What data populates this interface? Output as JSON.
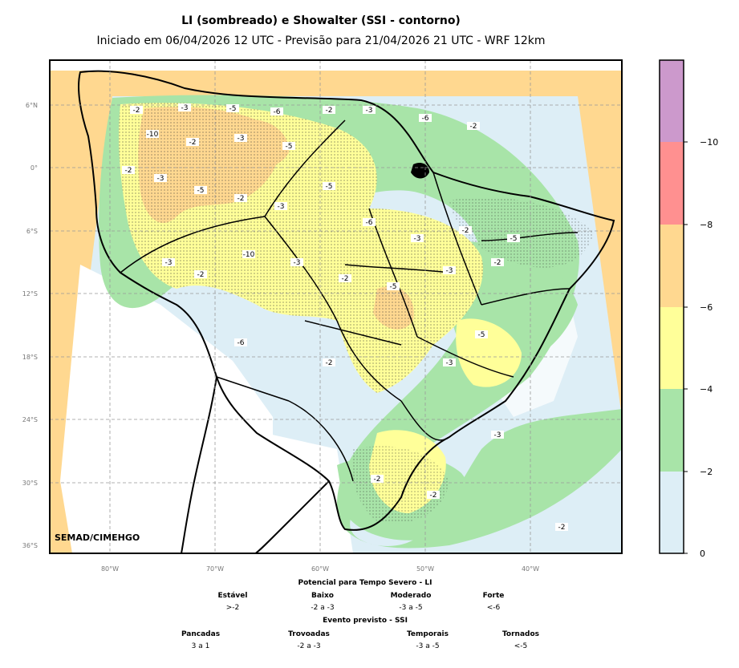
{
  "title": "LI (sombreado) e Showalter (SSI - contorno)",
  "subtitle": "Iniciado em 06/04/2026 12 UTC - Previsão para 21/04/2026 21 UTC - WRF 12km",
  "credit": "SEMAD/CIMEHGO",
  "lat_labels": [
    "6°N",
    "0°",
    "6°S",
    "12°S",
    "18°S",
    "24°S",
    "30°S",
    "36°S"
  ],
  "lon_labels": [
    "80°W",
    "70°W",
    "60°W",
    "50°W",
    "40°W"
  ],
  "colorbar": {
    "ticks": [
      "0",
      "−2",
      "−4",
      "−6",
      "−8",
      "−10"
    ],
    "colors": [
      "#ddeef6",
      "#a8e4a8",
      "#ffff99",
      "#ffd890",
      "#ff9090",
      "#cc99cc"
    ]
  },
  "legend_li": {
    "title": "Potencial para Tempo Severo - LI",
    "items": [
      {
        "label": "Estável",
        "value": ">-2"
      },
      {
        "label": "Baixo",
        "value": "-2 a -3"
      },
      {
        "label": "Moderado",
        "value": "-3 a -5"
      },
      {
        "label": "Forte",
        "value": "<-6"
      }
    ]
  },
  "legend_ssi": {
    "title": "Evento previsto - SSI",
    "items": [
      {
        "label": "Pancadas",
        "value": "3 a 1"
      },
      {
        "label": "Trovoadas",
        "value": "-2 a -3"
      },
      {
        "label": "Temporais",
        "value": "-3 a -5"
      },
      {
        "label": "Tornados",
        "value": "<-5"
      }
    ]
  },
  "contour_labels": [
    "-2",
    "-3",
    "-5",
    "-6",
    "-10",
    "-2",
    "-3",
    "-5",
    "-2",
    "-3",
    "-6",
    "-2",
    "-2",
    "-3",
    "-5",
    "-2",
    "-3",
    "-5",
    "-6",
    "-3",
    "-2",
    "-5",
    "-3",
    "-2",
    "-10",
    "-3",
    "-2",
    "-5",
    "-3",
    "-2",
    "-6",
    "-2",
    "-3",
    "-5",
    "-2",
    "-2",
    "-3",
    "-2"
  ]
}
